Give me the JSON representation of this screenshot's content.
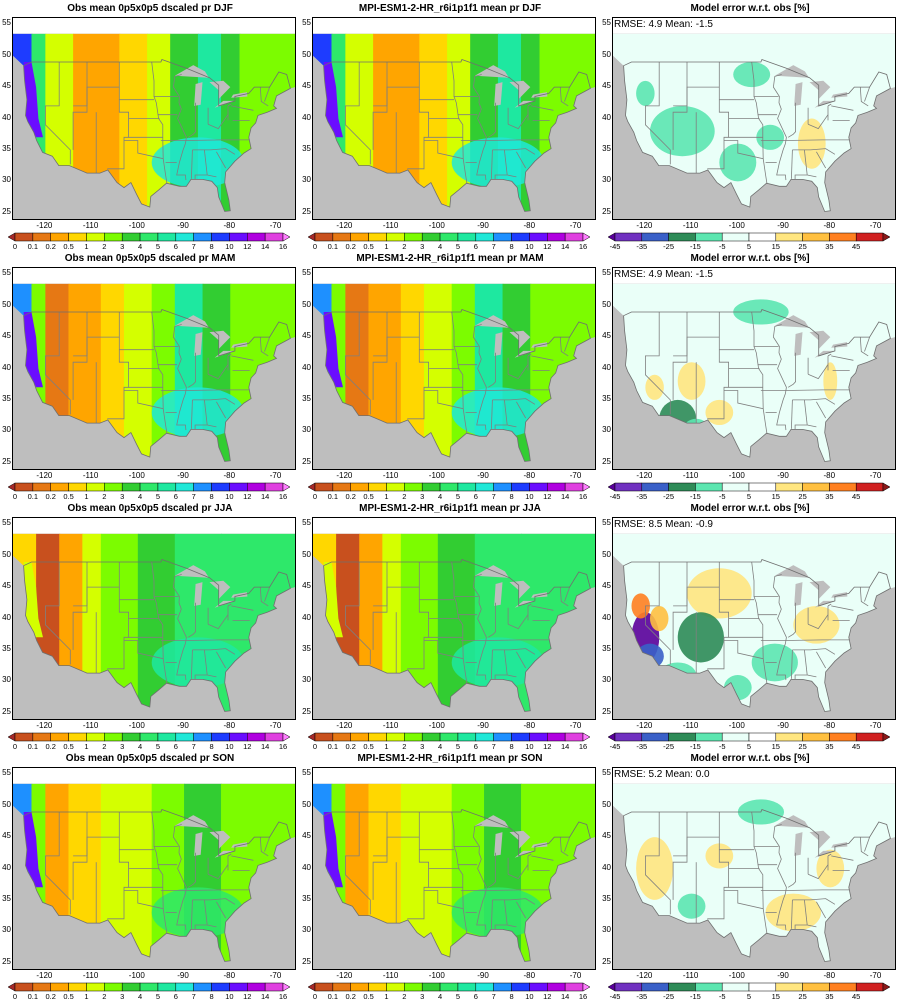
{
  "rows": [
    {
      "season": "DJF",
      "panels": [
        {
          "kind": "obs",
          "title": "Obs mean 0p5x0p5 dscaled pr DJF",
          "stats": ""
        },
        {
          "kind": "model",
          "title": "MPI-ESM1-2-HR_r6i1p1f1 mean pr DJF",
          "stats": ""
        },
        {
          "kind": "error",
          "title": "Model error w.r.t. obs [%]",
          "stats": "RMSE: 4.9  Mean: -1.5"
        }
      ]
    },
    {
      "season": "MAM",
      "panels": [
        {
          "kind": "obs",
          "title": "Obs mean 0p5x0p5 dscaled pr MAM",
          "stats": ""
        },
        {
          "kind": "model",
          "title": "MPI-ESM1-2-HR_r6i1p1f1 mean pr MAM",
          "stats": ""
        },
        {
          "kind": "error",
          "title": "Model error w.r.t. obs [%]",
          "stats": "RMSE: 4.9  Mean: -1.5"
        }
      ]
    },
    {
      "season": "JJA",
      "panels": [
        {
          "kind": "obs",
          "title": "Obs mean 0p5x0p5 dscaled pr JJA",
          "stats": ""
        },
        {
          "kind": "model",
          "title": "MPI-ESM1-2-HR_r6i1p1f1 mean pr JJA",
          "stats": ""
        },
        {
          "kind": "error",
          "title": "Model error w.r.t. obs [%]",
          "stats": "RMSE: 8.5  Mean: -0.9"
        }
      ]
    },
    {
      "season": "SON",
      "panels": [
        {
          "kind": "obs",
          "title": "Obs mean 0p5x0p5 dscaled pr SON",
          "stats": ""
        },
        {
          "kind": "model",
          "title": "MPI-ESM1-2-HR_r6i1p1f1 mean pr SON",
          "stats": ""
        },
        {
          "kind": "error",
          "title": "Model error w.r.t. obs [%]",
          "stats": "RMSE: 5.2  Mean: 0.0"
        }
      ]
    }
  ],
  "axes": {
    "lat_ticks": [
      "25",
      "30",
      "35",
      "40",
      "45",
      "50",
      "55"
    ],
    "lon_ticks": [
      "-120",
      "-110",
      "-100",
      "-90",
      "-80",
      "-70"
    ]
  },
  "colorbars": {
    "precip": {
      "labels": [
        "0",
        "0.1",
        "0.2",
        "0.5",
        "1",
        "2",
        "3",
        "4",
        "5",
        "6",
        "7",
        "8",
        "10",
        "12",
        "14",
        "16"
      ],
      "colors": [
        "#a52a2a",
        "#c8501e",
        "#e67814",
        "#ffa500",
        "#ffd700",
        "#d4ff00",
        "#7cfc00",
        "#32cd32",
        "#2ee86a",
        "#1ee8a0",
        "#20e8d8",
        "#1e90ff",
        "#1e3cff",
        "#6a0dff",
        "#b000e0",
        "#e040e0",
        "#ff80ff"
      ]
    },
    "error": {
      "labels": [
        "-45",
        "-35",
        "-25",
        "-15",
        "-5",
        "5",
        "15",
        "25",
        "35",
        "45"
      ],
      "colors": [
        "#5a009a",
        "#7030c0",
        "#3a60c8",
        "#2e8b57",
        "#5ce6b0",
        "#eafff8",
        "#ffffff",
        "#ffe680",
        "#ffc040",
        "#ff8020",
        "#d02020",
        "#8b1a1a"
      ]
    }
  },
  "land_colors": {
    "ocean": "#bebebe",
    "state_lines": "#7f7f7f"
  }
}
